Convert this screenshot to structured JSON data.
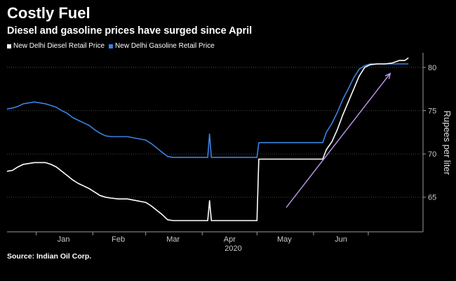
{
  "title": "Costly Fuel",
  "subtitle": "Diesel and gasoline prices have surged since April",
  "source": "Source: Indian Oil Corp.",
  "chart_data": {
    "type": "line",
    "ylabel": "Rupees per liter",
    "year_label": "2020",
    "ylim": [
      61,
      81.7
    ],
    "yticks": [
      65,
      70,
      75,
      80
    ],
    "xticks": [
      "Jan",
      "Feb",
      "Mar",
      "Apr",
      "May",
      "Jun"
    ],
    "grid": true,
    "legend_position": "top-left",
    "series": [
      {
        "name": "New Delhi Diesel Retail Price",
        "color": "#ffffff",
        "points": [
          [
            "2019-12-16",
            68.0
          ],
          [
            "2019-12-19",
            68.1
          ],
          [
            "2019-12-22",
            68.5
          ],
          [
            "2019-12-25",
            68.8
          ],
          [
            "2019-12-28",
            68.9
          ],
          [
            "2019-12-31",
            69.0
          ],
          [
            "2020-01-03",
            69.0
          ],
          [
            "2020-01-06",
            69.0
          ],
          [
            "2020-01-09",
            68.8
          ],
          [
            "2020-01-12",
            68.5
          ],
          [
            "2020-01-15",
            68.0
          ],
          [
            "2020-01-18",
            67.5
          ],
          [
            "2020-01-21",
            67.0
          ],
          [
            "2020-01-24",
            66.6
          ],
          [
            "2020-01-27",
            66.3
          ],
          [
            "2020-01-30",
            66.0
          ],
          [
            "2020-02-02",
            65.6
          ],
          [
            "2020-02-05",
            65.2
          ],
          [
            "2020-02-08",
            65.0
          ],
          [
            "2020-02-11",
            64.9
          ],
          [
            "2020-02-15",
            64.8
          ],
          [
            "2020-02-20",
            64.8
          ],
          [
            "2020-02-25",
            64.6
          ],
          [
            "2020-03-01",
            64.4
          ],
          [
            "2020-03-04",
            64.0
          ],
          [
            "2020-03-07",
            63.5
          ],
          [
            "2020-03-10",
            63.0
          ],
          [
            "2020-03-13",
            62.4
          ],
          [
            "2020-03-16",
            62.3
          ],
          [
            "2020-04-04",
            62.3
          ],
          [
            "2020-04-05",
            64.6
          ],
          [
            "2020-04-06",
            62.3
          ],
          [
            "2020-04-21",
            62.3
          ],
          [
            "2020-05-01",
            62.3
          ],
          [
            "2020-05-02",
            69.4
          ],
          [
            "2020-06-06",
            69.4
          ],
          [
            "2020-06-08",
            70.5
          ],
          [
            "2020-06-11",
            71.4
          ],
          [
            "2020-06-14",
            72.8
          ],
          [
            "2020-06-17",
            74.5
          ],
          [
            "2020-06-20",
            76.0
          ],
          [
            "2020-06-23",
            77.5
          ],
          [
            "2020-06-26",
            79.0
          ],
          [
            "2020-06-29",
            80.0
          ],
          [
            "2020-07-02",
            80.3
          ],
          [
            "2020-07-06",
            80.4
          ],
          [
            "2020-07-10",
            80.4
          ],
          [
            "2020-07-14",
            80.5
          ],
          [
            "2020-07-18",
            80.8
          ],
          [
            "2020-07-21",
            80.8
          ],
          [
            "2020-07-23",
            81.1
          ]
        ]
      },
      {
        "name": "New Delhi Gasoline Retail Price",
        "color": "#3a82e0",
        "points": [
          [
            "2019-12-16",
            75.2
          ],
          [
            "2019-12-19",
            75.3
          ],
          [
            "2019-12-22",
            75.5
          ],
          [
            "2019-12-25",
            75.8
          ],
          [
            "2019-12-28",
            75.9
          ],
          [
            "2019-12-31",
            76.0
          ],
          [
            "2020-01-03",
            75.9
          ],
          [
            "2020-01-06",
            75.8
          ],
          [
            "2020-01-09",
            75.6
          ],
          [
            "2020-01-12",
            75.4
          ],
          [
            "2020-01-15",
            75.0
          ],
          [
            "2020-01-18",
            74.7
          ],
          [
            "2020-01-21",
            74.2
          ],
          [
            "2020-01-24",
            73.9
          ],
          [
            "2020-01-27",
            73.6
          ],
          [
            "2020-01-30",
            73.3
          ],
          [
            "2020-02-02",
            72.8
          ],
          [
            "2020-02-05",
            72.4
          ],
          [
            "2020-02-08",
            72.1
          ],
          [
            "2020-02-11",
            72.0
          ],
          [
            "2020-02-15",
            72.0
          ],
          [
            "2020-02-20",
            72.0
          ],
          [
            "2020-02-25",
            71.8
          ],
          [
            "2020-03-01",
            71.6
          ],
          [
            "2020-03-04",
            71.2
          ],
          [
            "2020-03-07",
            70.7
          ],
          [
            "2020-03-10",
            70.2
          ],
          [
            "2020-03-13",
            69.7
          ],
          [
            "2020-03-16",
            69.6
          ],
          [
            "2020-04-04",
            69.6
          ],
          [
            "2020-04-05",
            72.3
          ],
          [
            "2020-04-06",
            69.6
          ],
          [
            "2020-04-21",
            69.6
          ],
          [
            "2020-05-01",
            69.6
          ],
          [
            "2020-05-02",
            71.3
          ],
          [
            "2020-06-06",
            71.3
          ],
          [
            "2020-06-08",
            72.5
          ],
          [
            "2020-06-11",
            73.5
          ],
          [
            "2020-06-14",
            74.8
          ],
          [
            "2020-06-17",
            76.3
          ],
          [
            "2020-06-20",
            77.5
          ],
          [
            "2020-06-23",
            78.8
          ],
          [
            "2020-06-26",
            79.8
          ],
          [
            "2020-06-29",
            80.2
          ],
          [
            "2020-07-02",
            80.4
          ],
          [
            "2020-07-06",
            80.4
          ],
          [
            "2020-07-10",
            80.4
          ],
          [
            "2020-07-14",
            80.4
          ],
          [
            "2020-07-18",
            80.4
          ],
          [
            "2020-07-21",
            80.4
          ],
          [
            "2020-07-23",
            80.4
          ]
        ]
      }
    ],
    "annotations": [
      {
        "type": "arrow",
        "color": "#c09af0",
        "from": [
          "2020-05-17",
          63.8
        ],
        "to": [
          "2020-07-13",
          79.3
        ]
      }
    ]
  }
}
